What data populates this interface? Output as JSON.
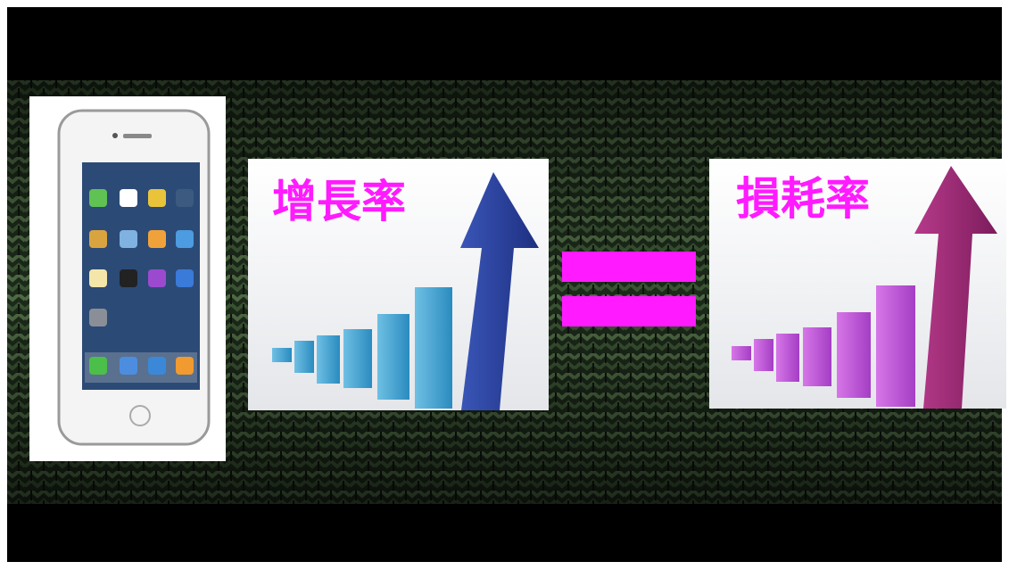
{
  "left_panel": {
    "title": "增長率"
  },
  "right_panel": {
    "title": "損耗率"
  }
}
